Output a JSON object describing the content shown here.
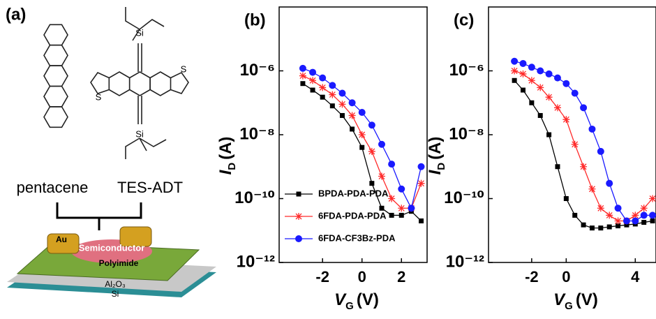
{
  "panel_a": {
    "label": "(a)",
    "molecules": [
      "pentacene",
      "TES-ADT"
    ],
    "atoms": {
      "silicon": "Si",
      "sulfur": "S"
    },
    "device": {
      "electrode": "Au",
      "semiconductor": "Semiconductor",
      "dielectric": "Polyimide",
      "oxide": "Al₂O₃",
      "substrate": "Si"
    }
  },
  "chart_data": [
    {
      "type": "line",
      "title": "(b)",
      "log_y": true,
      "ylabel": {
        "symbol": "I",
        "subscript": "D",
        "unit": "(A)"
      },
      "xlabel": {
        "symbol": "V",
        "subscript": "G",
        "unit": "(V)"
      },
      "x": [
        -3,
        -2.5,
        -2,
        -1.5,
        -1,
        -0.5,
        0,
        0.5,
        1,
        1.5,
        2,
        2.5,
        3
      ],
      "xlim": [
        -4.2,
        3.3
      ],
      "xticks": [
        -2,
        0,
        2
      ],
      "ylim": [
        1e-12,
        0.0001
      ],
      "yticks": [
        {
          "value": 1e-12,
          "label": "10⁻¹²"
        },
        {
          "value": 1e-10,
          "label": "10⁻¹⁰"
        },
        {
          "value": 1e-08,
          "label": "10⁻⁸"
        },
        {
          "value": 1e-06,
          "label": "10⁻⁶"
        }
      ],
      "legend": "lower right",
      "series": [
        {
          "name": "BPDA-PDA-PDA",
          "color": "#000000",
          "marker": "square",
          "values": [
            4e-07,
            2.5e-07,
            1.5e-07,
            8e-08,
            4e-08,
            1.5e-08,
            4e-09,
            3e-10,
            5e-11,
            3e-11,
            3e-11,
            4e-11,
            2e-11
          ]
        },
        {
          "name": "6FDA-PDA-PDA",
          "color": "#ff2a2a",
          "marker": "star",
          "values": [
            7e-07,
            5e-07,
            3e-07,
            1.8e-07,
            9e-08,
            4e-08,
            1e-08,
            3e-09,
            5e-10,
            1e-10,
            5e-11,
            5e-11,
            3e-10
          ]
        },
        {
          "name": "6FDA-CF3Bz-PDA",
          "color": "#1a1aff",
          "marker": "circle",
          "values": [
            1.2e-06,
            9e-07,
            6e-07,
            3.5e-07,
            2e-07,
            1e-07,
            5e-08,
            2e-08,
            5e-09,
            1.2e-09,
            2e-10,
            5e-11,
            1e-09
          ]
        }
      ]
    },
    {
      "type": "line",
      "title": "(c)",
      "log_y": true,
      "ylabel": {
        "symbol": "I",
        "subscript": "D",
        "unit": "(A)"
      },
      "xlabel": {
        "symbol": "V",
        "subscript": "G",
        "unit": "(V)"
      },
      "x": [
        -3,
        -2.5,
        -2,
        -1.5,
        -1,
        -0.5,
        0,
        0.5,
        1,
        1.5,
        2,
        2.5,
        3,
        3.5,
        4,
        4.5,
        5
      ],
      "xlim": [
        -4.5,
        5.2
      ],
      "xticks": [
        -2,
        0,
        4
      ],
      "ylim": [
        1e-12,
        0.0001
      ],
      "yticks": [
        {
          "value": 1e-12,
          "label": "10⁻¹²"
        },
        {
          "value": 1e-10,
          "label": "10⁻¹⁰"
        },
        {
          "value": 1e-08,
          "label": "10⁻⁸"
        },
        {
          "value": 1e-06,
          "label": "10⁻⁶"
        }
      ],
      "series": [
        {
          "color": "#000000",
          "marker": "square",
          "values": [
            5e-07,
            2.5e-07,
            1e-07,
            4e-08,
            1e-08,
            1e-09,
            1e-10,
            3e-11,
            1.5e-11,
            1.2e-11,
            1.2e-11,
            1.3e-11,
            1.4e-11,
            1.5e-11,
            1.6e-11,
            1.8e-11,
            2e-11
          ]
        },
        {
          "color": "#ff2a2a",
          "marker": "star",
          "values": [
            1e-06,
            8e-07,
            5e-07,
            3e-07,
            1.5e-07,
            7e-08,
            3e-08,
            5e-09,
            1e-09,
            2e-10,
            5e-11,
            3e-11,
            2e-11,
            2e-11,
            3e-11,
            5e-11,
            1e-10
          ]
        },
        {
          "color": "#1a1aff",
          "marker": "circle",
          "values": [
            2e-06,
            1.7e-06,
            1.3e-06,
            1e-06,
            8e-07,
            6e-07,
            4e-07,
            2e-07,
            7e-08,
            1.5e-08,
            3e-09,
            3e-10,
            5e-11,
            2e-11,
            2e-11,
            3e-11,
            3e-11
          ]
        }
      ]
    }
  ]
}
